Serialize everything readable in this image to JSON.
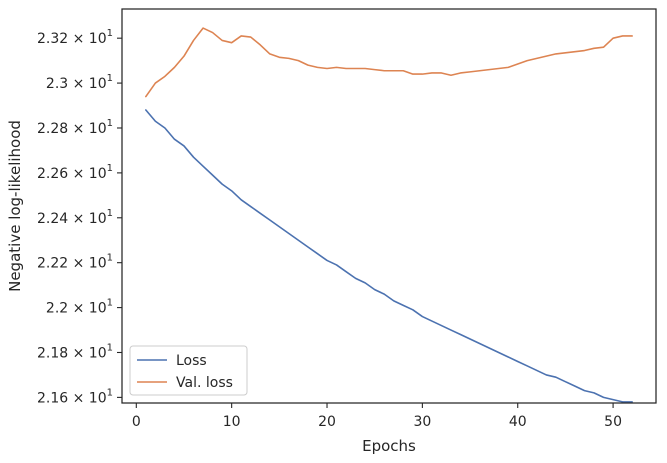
{
  "chart_data": {
    "type": "line",
    "title": "",
    "xlabel": "Epochs",
    "ylabel": "Negative log-likelihood",
    "xlim": [
      -1.5,
      54.5
    ],
    "ylim": [
      21.575,
      23.33
    ],
    "x_ticks": [
      {
        "value": 0,
        "label": "0"
      },
      {
        "value": 10,
        "label": "10"
      },
      {
        "value": 20,
        "label": "20"
      },
      {
        "value": 30,
        "label": "30"
      },
      {
        "value": 40,
        "label": "40"
      },
      {
        "value": 50,
        "label": "50"
      }
    ],
    "y_ticks": [
      {
        "value": 21.6,
        "mantissa": "2.16",
        "label": "2.16 × 10^1"
      },
      {
        "value": 21.8,
        "mantissa": "2.18",
        "label": "2.18 × 10^1"
      },
      {
        "value": 22.0,
        "mantissa": "2.2",
        "label": "2.2 × 10^1"
      },
      {
        "value": 22.2,
        "mantissa": "2.22",
        "label": "2.22 × 10^1"
      },
      {
        "value": 22.4,
        "mantissa": "2.24",
        "label": "2.24 × 10^1"
      },
      {
        "value": 22.6,
        "mantissa": "2.26",
        "label": "2.26 × 10^1"
      },
      {
        "value": 22.8,
        "mantissa": "2.28",
        "label": "2.28 × 10^1"
      },
      {
        "value": 23.0,
        "mantissa": "2.3",
        "label": "2.3 × 10^1"
      },
      {
        "value": 23.2,
        "mantissa": "2.32",
        "label": "2.32 × 10^1"
      }
    ],
    "y_tick_multiplier": "×",
    "y_tick_base": "10",
    "y_tick_exponent": "1",
    "legend_position": "lower-left",
    "series": [
      {
        "name": "Loss",
        "color": "#4c72b0",
        "x": [
          1,
          2,
          3,
          4,
          5,
          6,
          7,
          8,
          9,
          10,
          11,
          12,
          13,
          14,
          15,
          16,
          17,
          18,
          19,
          20,
          21,
          22,
          23,
          24,
          25,
          26,
          27,
          28,
          29,
          30,
          31,
          32,
          33,
          34,
          35,
          36,
          37,
          38,
          39,
          40,
          41,
          42,
          43,
          44,
          45,
          46,
          47,
          48,
          49,
          50,
          51,
          52
        ],
        "values": [
          22.88,
          22.83,
          22.8,
          22.75,
          22.72,
          22.67,
          22.63,
          22.59,
          22.55,
          22.52,
          22.48,
          22.45,
          22.42,
          22.39,
          22.36,
          22.33,
          22.3,
          22.27,
          22.24,
          22.21,
          22.19,
          22.16,
          22.13,
          22.11,
          22.08,
          22.06,
          22.03,
          22.01,
          21.99,
          21.96,
          21.94,
          21.92,
          21.9,
          21.88,
          21.86,
          21.84,
          21.82,
          21.8,
          21.78,
          21.76,
          21.74,
          21.72,
          21.7,
          21.69,
          21.67,
          21.65,
          21.63,
          21.62,
          21.6,
          21.59,
          21.58,
          21.58
        ]
      },
      {
        "name": "Val. loss",
        "color": "#dd8452",
        "x": [
          1,
          2,
          3,
          4,
          5,
          6,
          7,
          8,
          9,
          10,
          11,
          12,
          13,
          14,
          15,
          16,
          17,
          18,
          19,
          20,
          21,
          22,
          23,
          24,
          25,
          26,
          27,
          28,
          29,
          30,
          31,
          32,
          33,
          34,
          35,
          36,
          37,
          38,
          39,
          40,
          41,
          42,
          43,
          44,
          45,
          46,
          47,
          48,
          49,
          50,
          51,
          52
        ],
        "values": [
          22.94,
          23.0,
          23.03,
          23.07,
          23.12,
          23.19,
          23.245,
          23.225,
          23.19,
          23.18,
          23.21,
          23.205,
          23.17,
          23.13,
          23.115,
          23.11,
          23.1,
          23.08,
          23.07,
          23.065,
          23.07,
          23.065,
          23.065,
          23.065,
          23.06,
          23.055,
          23.055,
          23.055,
          23.04,
          23.04,
          23.045,
          23.045,
          23.035,
          23.045,
          23.05,
          23.055,
          23.06,
          23.065,
          23.07,
          23.085,
          23.1,
          23.11,
          23.12,
          23.13,
          23.135,
          23.14,
          23.145,
          23.155,
          23.16,
          23.2,
          23.21,
          23.21
        ]
      }
    ]
  }
}
